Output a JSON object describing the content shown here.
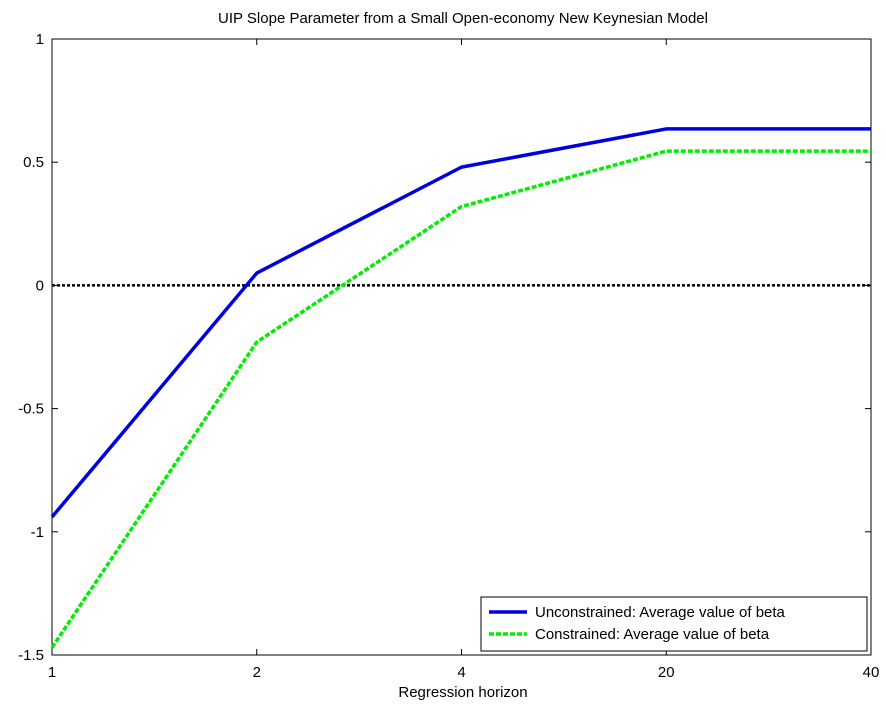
{
  "chart_data": {
    "type": "line",
    "title": "UIP Slope Parameter from a Small Open-economy New Keynesian Model",
    "xlabel": "Regression horizon",
    "ylabel": "",
    "categories": [
      "1",
      "2",
      "4",
      "20",
      "40"
    ],
    "ylim": [
      -1.5,
      1
    ],
    "yticks": [
      "-1.5",
      "-1",
      "-0.5",
      "0",
      "0.5",
      "1"
    ],
    "ytick_values": [
      -1.5,
      -1,
      -0.5,
      0,
      0.5,
      1
    ],
    "grid": false,
    "legend_position": "bottom-right",
    "reference_line": {
      "y": 0,
      "color": "#000000",
      "style": "dotted"
    },
    "series": [
      {
        "name": "Unconstrained: Average value of beta",
        "color": "#0000dd",
        "style": "solid",
        "values": [
          -0.94,
          0.05,
          0.48,
          0.635,
          0.635
        ]
      },
      {
        "name": "Constrained: Average value of beta",
        "color": "#00ee00",
        "style": "dashed",
        "values": [
          -1.47,
          -0.23,
          0.32,
          0.545,
          0.545
        ]
      }
    ]
  }
}
